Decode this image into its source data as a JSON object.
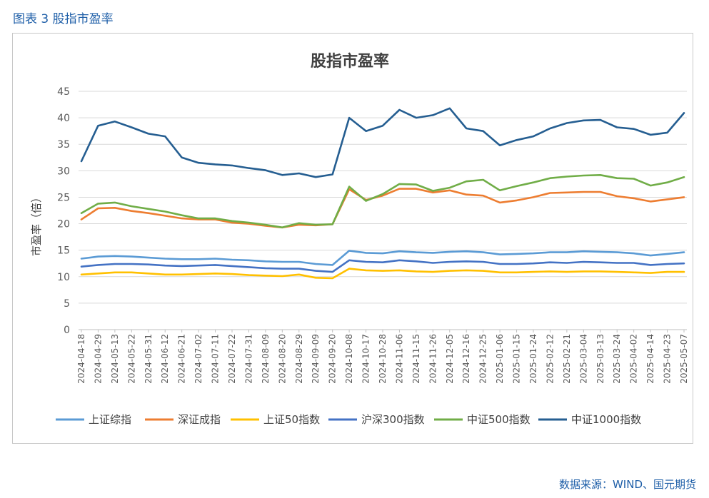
{
  "caption": "图表 3 股指市盈率",
  "source": "数据来源：WIND、国元期货",
  "chart_data": {
    "type": "line",
    "title": "股指市盈率",
    "xlabel": "",
    "ylabel": "市盈率（倍）",
    "ylim": [
      0,
      45
    ],
    "yticks": [
      0,
      5,
      10,
      15,
      20,
      25,
      30,
      35,
      40,
      45
    ],
    "grid": true,
    "legend_position": "bottom",
    "x": [
      "2024-04-18",
      "2024-04-29",
      "2024-05-13",
      "2024-05-22",
      "2024-05-31",
      "2024-06-12",
      "2024-06-21",
      "2024-07-02",
      "2024-07-11",
      "2024-07-22",
      "2024-07-31",
      "2024-08-09",
      "2024-08-20",
      "2024-08-29",
      "2024-09-09",
      "2024-09-20",
      "2024-10-08",
      "2024-10-17",
      "2024-10-28",
      "2024-11-06",
      "2024-11-15",
      "2024-11-26",
      "2024-12-05",
      "2024-12-16",
      "2024-12-25",
      "2025-01-06",
      "2025-01-15",
      "2025-01-24",
      "2025-02-12",
      "2025-02-21",
      "2025-03-04",
      "2025-03-13",
      "2025-03-24",
      "2025-04-02",
      "2025-04-14",
      "2025-04-23",
      "2025-05-07"
    ],
    "series": [
      {
        "name": "上证综指",
        "color": "#5b9bd5",
        "values": [
          13.4,
          13.8,
          13.9,
          13.8,
          13.6,
          13.4,
          13.3,
          13.3,
          13.4,
          13.2,
          13.1,
          12.9,
          12.8,
          12.8,
          12.4,
          12.2,
          14.9,
          14.5,
          14.4,
          14.8,
          14.6,
          14.5,
          14.7,
          14.8,
          14.6,
          14.2,
          14.3,
          14.4,
          14.6,
          14.6,
          14.8,
          14.7,
          14.6,
          14.4,
          14.0,
          14.3,
          14.6
        ]
      },
      {
        "name": "深证成指",
        "color": "#ed7d31",
        "values": [
          20.8,
          22.9,
          23.0,
          22.4,
          22.0,
          21.5,
          21.0,
          20.8,
          20.8,
          20.2,
          20.0,
          19.6,
          19.3,
          19.8,
          19.7,
          19.9,
          26.5,
          24.5,
          25.3,
          26.6,
          26.6,
          25.9,
          26.3,
          25.5,
          25.3,
          24.0,
          24.4,
          25.0,
          25.8,
          25.9,
          26.0,
          26.0,
          25.2,
          24.8,
          24.2,
          24.6,
          25.0
        ]
      },
      {
        "name": "上证50指数",
        "color": "#ffc000",
        "values": [
          10.4,
          10.6,
          10.8,
          10.8,
          10.6,
          10.4,
          10.4,
          10.5,
          10.6,
          10.5,
          10.3,
          10.2,
          10.1,
          10.4,
          9.8,
          9.7,
          11.5,
          11.2,
          11.1,
          11.2,
          11.0,
          10.9,
          11.1,
          11.2,
          11.1,
          10.8,
          10.8,
          10.9,
          11.0,
          10.9,
          11.0,
          11.0,
          10.9,
          10.8,
          10.7,
          10.9,
          10.9
        ]
      },
      {
        "name": "沪深300指数",
        "color": "#4472c4",
        "values": [
          11.9,
          12.2,
          12.4,
          12.4,
          12.3,
          12.1,
          12.0,
          12.1,
          12.2,
          12.0,
          11.8,
          11.6,
          11.5,
          11.5,
          11.1,
          10.9,
          13.1,
          12.8,
          12.7,
          13.1,
          12.9,
          12.6,
          12.8,
          12.9,
          12.8,
          12.4,
          12.4,
          12.5,
          12.7,
          12.6,
          12.8,
          12.7,
          12.6,
          12.6,
          12.2,
          12.4,
          12.5
        ]
      },
      {
        "name": "中证500指数",
        "color": "#70ad47",
        "values": [
          22.0,
          23.8,
          24.0,
          23.3,
          22.8,
          22.3,
          21.6,
          21.0,
          21.0,
          20.5,
          20.2,
          19.8,
          19.3,
          20.1,
          19.8,
          19.9,
          27.0,
          24.3,
          25.6,
          27.5,
          27.4,
          26.2,
          26.8,
          28.0,
          28.3,
          26.3,
          27.1,
          27.8,
          28.6,
          28.9,
          29.1,
          29.2,
          28.6,
          28.5,
          27.2,
          27.8,
          28.8
        ]
      },
      {
        "name": "中证1000指数",
        "color": "#255e91",
        "values": [
          31.8,
          38.5,
          39.3,
          38.2,
          37.0,
          36.5,
          32.5,
          31.5,
          31.2,
          31.0,
          30.5,
          30.1,
          29.2,
          29.5,
          28.8,
          29.3,
          40.0,
          37.5,
          38.5,
          41.5,
          40.0,
          40.5,
          41.8,
          38.0,
          37.5,
          34.8,
          35.8,
          36.5,
          38.0,
          39.0,
          39.5,
          39.6,
          38.2,
          37.9,
          36.8,
          37.2,
          40.9
        ]
      }
    ]
  }
}
